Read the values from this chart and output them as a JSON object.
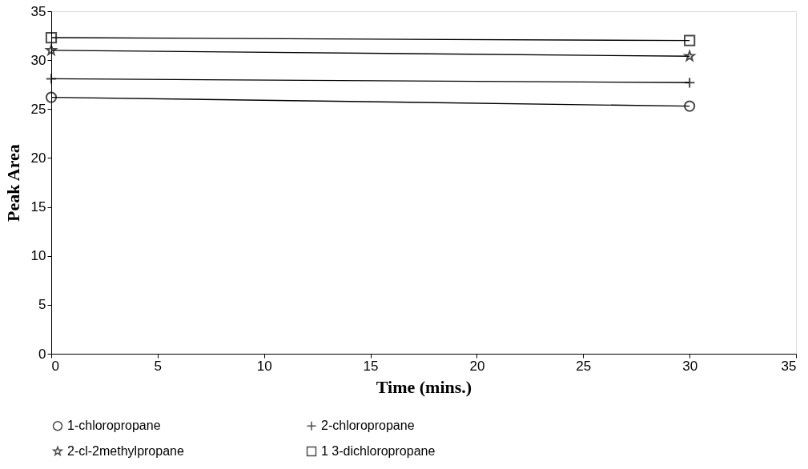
{
  "chart_data": {
    "type": "line",
    "xlabel": "Time (mins.)",
    "ylabel": "Peak Area",
    "x": [
      0,
      30
    ],
    "xlim": [
      0,
      35
    ],
    "xticks": [
      0,
      5,
      10,
      15,
      20,
      25,
      30,
      35
    ],
    "ylim": [
      0,
      35
    ],
    "yticks": [
      0,
      5,
      10,
      15,
      20,
      25,
      30,
      35
    ],
    "grid": false,
    "legend": "bottom",
    "line_style": "solid",
    "series": [
      {
        "name": "1-chloropropane",
        "color": "#000000",
        "marker": "circle",
        "values": [
          26.2,
          25.3
        ]
      },
      {
        "name": "2-chloropropane",
        "color": "#000000",
        "marker": "cross",
        "values": [
          28.1,
          27.7
        ]
      },
      {
        "name": "2-cl-2methylpropane",
        "color": "#000000",
        "marker": "star",
        "values": [
          31.0,
          30.4
        ]
      },
      {
        "name": "1 3-dichloropropane",
        "color": "#000000",
        "marker": "square",
        "values": [
          32.3,
          32.0
        ]
      }
    ]
  }
}
